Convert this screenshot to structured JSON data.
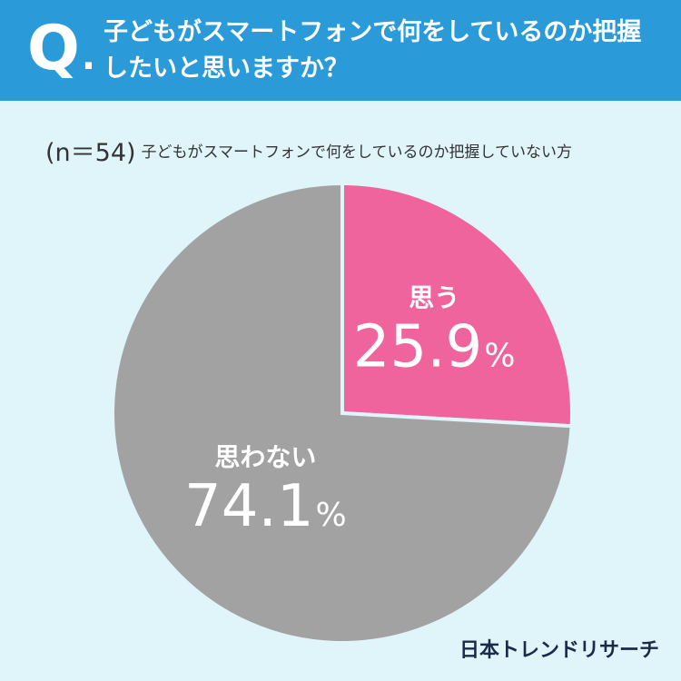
{
  "header": {
    "q_label": "Q",
    "q_dot": ".",
    "question_line1": "子どもがスマートフォンで何をしているのか把握",
    "question_line2": "したいと思いますか？",
    "background_color": "#2a9ad8"
  },
  "subtitle": {
    "sample": "(n＝54)",
    "description": "子どもがスマートフォンで何をしているのか把握していない方"
  },
  "chart_data": {
    "type": "pie",
    "slices": [
      {
        "label": "思う",
        "value": 25.9,
        "display_value": "25.9",
        "unit": "%",
        "color": "#f0649e"
      },
      {
        "label": "思わない",
        "value": 74.1,
        "display_value": "74.1",
        "unit": "%",
        "color": "#a2a2a2"
      }
    ]
  },
  "brand": {
    "text": "日本トレンドリサーチ"
  }
}
